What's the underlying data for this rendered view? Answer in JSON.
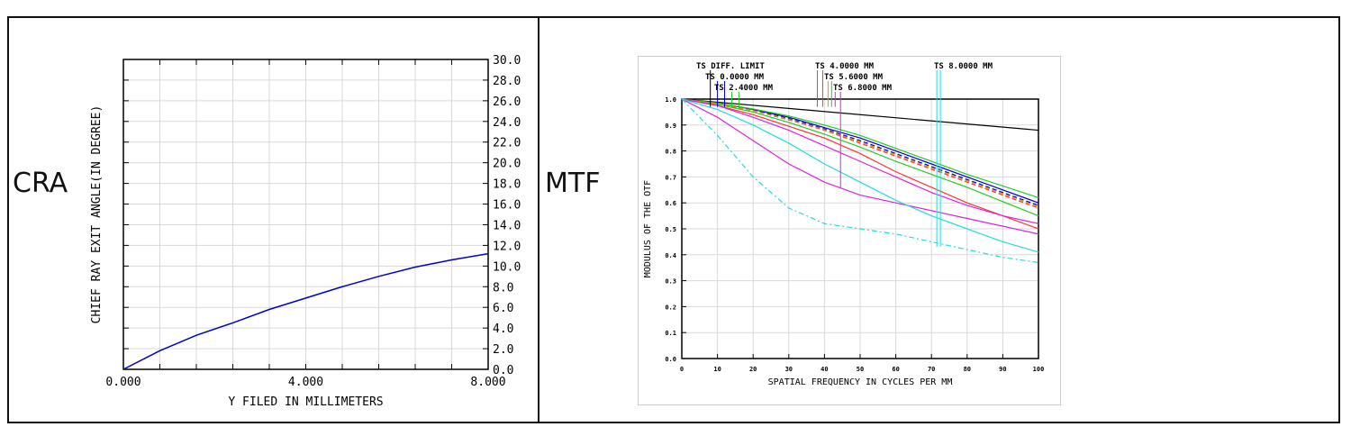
{
  "panels": {
    "left_label": "CRA",
    "right_label": "MTF"
  },
  "colors": {
    "axis": "#000000",
    "grid": "#d9d9d9",
    "cra_curve": "#0000cc"
  },
  "chart_data": [
    {
      "type": "line",
      "title": "",
      "xlabel": "Y FILED IN MILLIMETERS",
      "ylabel": "CHIEF RAY EXIT ANGLE(IN DEGREE)",
      "xlim": [
        0,
        8
      ],
      "ylim": [
        0,
        30
      ],
      "x_ticks": [
        "0.000",
        "4.000",
        "8.000"
      ],
      "y_ticks": [
        "0.0",
        "2.0",
        "4.0",
        "6.0",
        "8.0",
        "10.0",
        "12.0",
        "14.0",
        "16.0",
        "18.0",
        "20.0",
        "22.0",
        "24.0",
        "26.0",
        "28.0",
        "30.0"
      ],
      "y_axis_side": "right",
      "grid": true,
      "series": [
        {
          "color": "#0000cc",
          "x": [
            0,
            0.8,
            1.6,
            2.4,
            3.2,
            4.0,
            4.8,
            5.6,
            6.4,
            7.2,
            8.0
          ],
          "y": [
            0,
            1.8,
            3.3,
            4.5,
            5.8,
            6.9,
            8.0,
            9.0,
            9.9,
            10.6,
            11.2
          ]
        }
      ]
    },
    {
      "type": "line",
      "title": "",
      "xlabel": "SPATIAL FREQUENCY IN CYCLES PER MM",
      "ylabel": "MODULUS OF THE OTF",
      "xlim": [
        0,
        100
      ],
      "ylim": [
        0,
        1
      ],
      "x_ticks": [
        "0",
        "10",
        "20",
        "30",
        "40",
        "50",
        "60",
        "70",
        "80",
        "90",
        "100"
      ],
      "y_ticks": [
        "0.0",
        "0.1",
        "0.2",
        "0.3",
        "0.4",
        "0.5",
        "0.6",
        "0.7",
        "0.8",
        "0.9",
        "1.0"
      ],
      "grid": true,
      "legend_labels": [
        "TS DIFF. LIMIT",
        "TS 0.0000 MM",
        "TS 2.4000 MM",
        "TS 4.0000 MM",
        "TS 5.6000 MM",
        "TS 6.8000 MM",
        "TS 8.0000 MM"
      ],
      "series": [
        {
          "color": "#000000",
          "dash": "",
          "x": [
            0,
            100
          ],
          "y": [
            1.0,
            0.88
          ]
        },
        {
          "color": "#0000cc",
          "dash": "",
          "x": [
            0,
            10,
            20,
            30,
            40,
            50,
            60,
            70,
            80,
            90,
            100
          ],
          "y": [
            1.0,
            0.985,
            0.96,
            0.93,
            0.89,
            0.85,
            0.8,
            0.75,
            0.7,
            0.65,
            0.6
          ]
        },
        {
          "color": "#0000cc",
          "dash": "5,3",
          "x": [
            0,
            10,
            20,
            30,
            40,
            50,
            60,
            70,
            80,
            90,
            100
          ],
          "y": [
            1.0,
            0.984,
            0.958,
            0.925,
            0.885,
            0.84,
            0.79,
            0.74,
            0.69,
            0.64,
            0.59
          ]
        },
        {
          "color": "#22cc22",
          "dash": "",
          "x": [
            0,
            10,
            20,
            30,
            40,
            50,
            60,
            70,
            80,
            90,
            100
          ],
          "y": [
            1.0,
            0.985,
            0.962,
            0.935,
            0.9,
            0.86,
            0.81,
            0.76,
            0.71,
            0.665,
            0.62
          ]
        },
        {
          "color": "#22cc22",
          "dash": "",
          "x": [
            0,
            10,
            20,
            30,
            40,
            50,
            60,
            70,
            80,
            90,
            100
          ],
          "y": [
            1.0,
            0.98,
            0.95,
            0.91,
            0.865,
            0.815,
            0.76,
            0.71,
            0.66,
            0.605,
            0.55
          ]
        },
        {
          "color": "#ff3333",
          "dash": "",
          "x": [
            0,
            10,
            20,
            30,
            40,
            50,
            60,
            70,
            80,
            90,
            100
          ],
          "y": [
            1.0,
            0.975,
            0.94,
            0.895,
            0.85,
            0.79,
            0.72,
            0.66,
            0.6,
            0.55,
            0.5
          ]
        },
        {
          "color": "#ff3333",
          "dash": "5,3",
          "x": [
            0,
            10,
            20,
            30,
            40,
            50,
            60,
            70,
            80,
            90,
            100
          ],
          "y": [
            1.0,
            0.982,
            0.955,
            0.92,
            0.88,
            0.83,
            0.78,
            0.73,
            0.68,
            0.63,
            0.58
          ]
        },
        {
          "color": "#dd9900",
          "dash": "5,3",
          "x": [
            0,
            10,
            20,
            30,
            40,
            50,
            60,
            70,
            80,
            90,
            100
          ],
          "y": [
            1.0,
            0.983,
            0.956,
            0.922,
            0.882,
            0.835,
            0.785,
            0.735,
            0.685,
            0.635,
            0.585
          ]
        },
        {
          "color": "#dd22dd",
          "dash": "",
          "x": [
            0,
            10,
            20,
            30,
            40,
            50,
            60,
            70,
            80,
            90,
            100
          ],
          "y": [
            1.0,
            0.975,
            0.93,
            0.88,
            0.82,
            0.76,
            0.7,
            0.64,
            0.59,
            0.55,
            0.52
          ]
        },
        {
          "color": "#dd22dd",
          "dash": "",
          "x": [
            0,
            10,
            20,
            30,
            40,
            50,
            60,
            70,
            80,
            90,
            100
          ],
          "y": [
            1.0,
            0.93,
            0.84,
            0.75,
            0.68,
            0.63,
            0.6,
            0.57,
            0.54,
            0.51,
            0.48
          ]
        },
        {
          "color": "#22dddd",
          "dash": "",
          "x": [
            0,
            10,
            20,
            30,
            40,
            50,
            60,
            70,
            80,
            90,
            100
          ],
          "y": [
            1.0,
            0.96,
            0.9,
            0.83,
            0.75,
            0.68,
            0.61,
            0.55,
            0.5,
            0.45,
            0.41
          ]
        },
        {
          "color": "#22dddd",
          "dash": "6,3,2,3",
          "x": [
            0,
            10,
            20,
            30,
            40,
            50,
            60,
            70,
            80,
            90,
            100
          ],
          "y": [
            1.0,
            0.86,
            0.7,
            0.58,
            0.52,
            0.5,
            0.48,
            0.45,
            0.42,
            0.39,
            0.37
          ]
        }
      ]
    }
  ]
}
